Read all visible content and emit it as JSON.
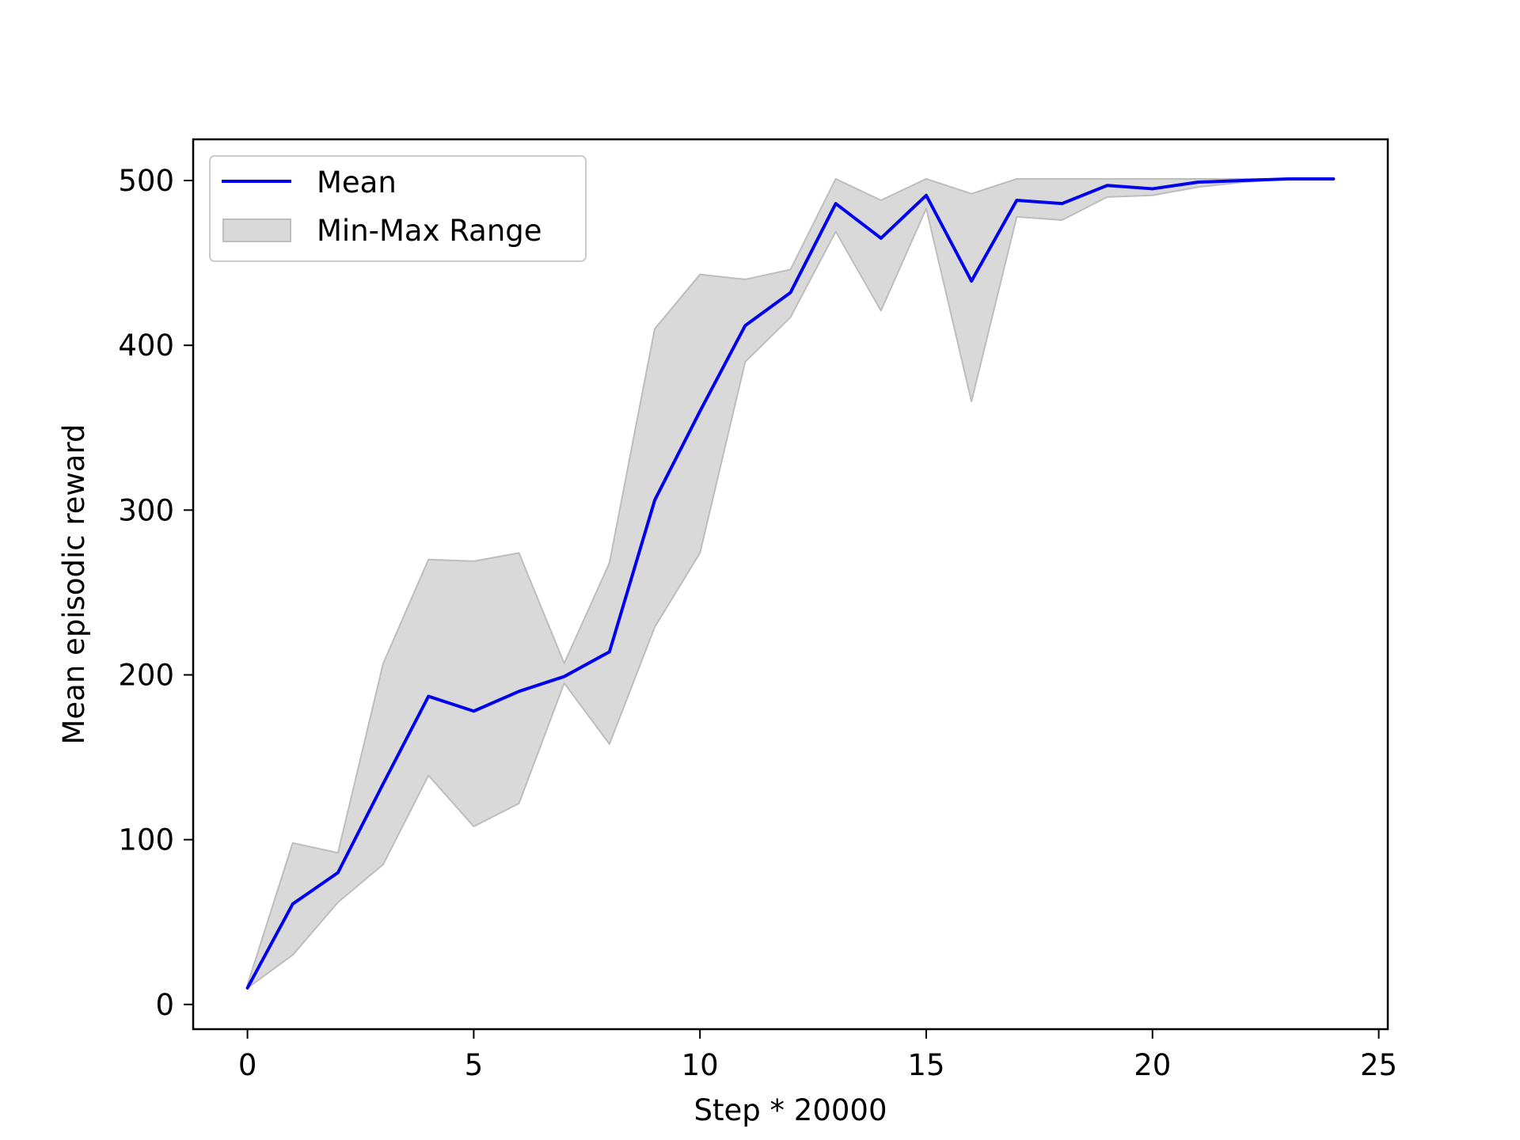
{
  "chart_data": {
    "type": "line",
    "title": "",
    "xlabel": "Step * 20000",
    "ylabel": "Mean episodic reward",
    "xlim": [
      -1.2,
      25.2
    ],
    "ylim": [
      -15,
      525
    ],
    "xticks": [
      0,
      5,
      10,
      15,
      20,
      25
    ],
    "xtick_labels": [
      "0",
      "5",
      "10",
      "15",
      "20",
      "25"
    ],
    "yticks": [
      0,
      100,
      200,
      300,
      400,
      500
    ],
    "ytick_labels": [
      "0",
      "100",
      "200",
      "300",
      "400",
      "500"
    ],
    "grid": false,
    "legend_position": "top-left",
    "colors": {
      "mean": "#0000ee",
      "range_fill": "#d9d9d9",
      "range_edge": "#bdbdbd"
    },
    "x": [
      0,
      1,
      2,
      3,
      4,
      5,
      6,
      7,
      8,
      9,
      10,
      11,
      12,
      13,
      14,
      15,
      16,
      17,
      18,
      19,
      20,
      21,
      22,
      23,
      24
    ],
    "series": [
      {
        "name": "Mean",
        "values": [
          10,
          61,
          80,
          134,
          187,
          178,
          190,
          199,
          214,
          306,
          360,
          412,
          432,
          486,
          465,
          491,
          439,
          488,
          486,
          497,
          495,
          499,
          500,
          501,
          501
        ]
      },
      {
        "name": "Min-Max Range",
        "min": [
          10,
          30,
          62,
          85,
          139,
          108,
          122,
          195,
          158,
          229,
          274,
          390,
          417,
          469,
          421,
          483,
          366,
          478,
          476,
          490,
          491,
          496,
          499,
          501,
          501
        ],
        "max": [
          12,
          98,
          92,
          207,
          270,
          269,
          274,
          207,
          268,
          410,
          443,
          440,
          446,
          501,
          488,
          501,
          492,
          501,
          501,
          501,
          501,
          501,
          501,
          501,
          501
        ]
      }
    ]
  }
}
